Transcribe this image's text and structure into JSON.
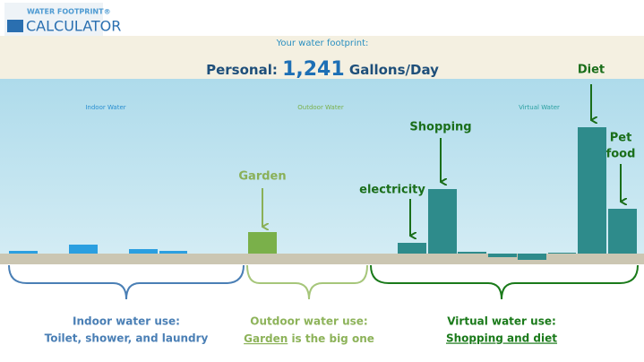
{
  "header": {
    "logo_top": "WATER FOOTPRINT®",
    "logo_bottom": "CALCULATOR"
  },
  "footprint": {
    "label": "Your water footprint:",
    "personal_label": "Personal:",
    "value": "1,241",
    "unit": "Gallons/Day"
  },
  "sections": [
    "Indoor Water",
    "Outdoor Water",
    "Virtual Water"
  ],
  "annotations": {
    "garden": "Garden",
    "electricity": "electricity",
    "shopping": "Shopping",
    "diet": "Diet",
    "pet_food": [
      "Pet",
      "food"
    ]
  },
  "summaries": [
    {
      "title": "Indoor water use:",
      "line": [
        "Toilet, shower, and laundry"
      ]
    },
    {
      "title": "Outdoor water use:",
      "line": [
        "Garden",
        " is the big one"
      ]
    },
    {
      "title": "Virtual water use:",
      "line": [
        "Shopping and diet"
      ]
    }
  ]
}
